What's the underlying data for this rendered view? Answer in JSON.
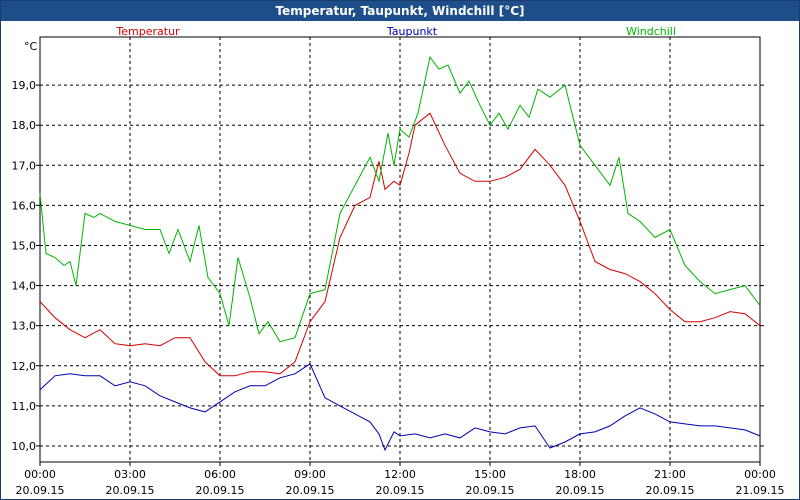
{
  "window": {
    "title": "Temperatur, Taupunkt, Windchill [°C]"
  },
  "chart_data": {
    "type": "line",
    "title": "Temperatur, Taupunkt, Windchill [°C]",
    "ylabel": "°C",
    "ylim": [
      9.6,
      20.2
    ],
    "yticks": [
      "10,0",
      "11,0",
      "12,0",
      "13,0",
      "14,0",
      "15,0",
      "16,0",
      "17,0",
      "18,0",
      "19,0"
    ],
    "xlim": [
      0,
      24
    ],
    "xticks": [
      {
        "time": "00:00",
        "date": "20.09.15"
      },
      {
        "time": "03:00",
        "date": "20.09.15"
      },
      {
        "time": "06:00",
        "date": "20.09.15"
      },
      {
        "time": "09:00",
        "date": "20.09.15"
      },
      {
        "time": "12:00",
        "date": "20.09.15"
      },
      {
        "time": "15:00",
        "date": "20.09.15"
      },
      {
        "time": "18:00",
        "date": "20.09.15"
      },
      {
        "time": "21:00",
        "date": "20.09.15"
      },
      {
        "time": "00:00",
        "date": "21.09.15"
      }
    ],
    "grid": true,
    "legend": "top",
    "series": [
      {
        "name": "Temperatur",
        "color": "#d40000",
        "x": [
          0,
          0.5,
          1,
          1.5,
          2,
          2.5,
          3,
          3.5,
          4,
          4.5,
          5,
          5.5,
          6,
          6.5,
          7,
          7.5,
          8,
          8.5,
          9,
          9.5,
          10,
          10.5,
          11,
          11.3,
          11.5,
          11.8,
          12,
          12.3,
          12.5,
          13,
          13.5,
          14,
          14.5,
          15,
          15.5,
          16,
          16.5,
          17,
          17.5,
          18,
          18.5,
          19,
          19.5,
          20,
          20.5,
          21,
          21.5,
          22,
          22.5,
          23,
          23.5,
          24
        ],
        "y": [
          13.6,
          13.2,
          12.9,
          12.7,
          12.9,
          12.55,
          12.5,
          12.55,
          12.5,
          12.7,
          12.7,
          12.1,
          11.75,
          11.75,
          11.85,
          11.85,
          11.8,
          12.1,
          13.1,
          13.6,
          15.2,
          16.0,
          16.2,
          17.1,
          16.4,
          16.6,
          16.5,
          17.3,
          18.0,
          18.3,
          17.5,
          16.8,
          16.6,
          16.6,
          16.7,
          16.9,
          17.4,
          17.0,
          16.5,
          15.6,
          14.6,
          14.4,
          14.3,
          14.1,
          13.8,
          13.4,
          13.1,
          13.1,
          13.2,
          13.35,
          13.3,
          13.0
        ]
      },
      {
        "name": "Taupunkt",
        "color": "#0000b4",
        "x": [
          0,
          0.5,
          1,
          1.5,
          2,
          2.5,
          3,
          3.5,
          4,
          4.5,
          5,
          5.5,
          6,
          6.5,
          7,
          7.5,
          8,
          8.5,
          9,
          9.5,
          10,
          10.5,
          11,
          11.3,
          11.5,
          11.8,
          12,
          12.5,
          13,
          13.5,
          14,
          14.5,
          15,
          15.5,
          16,
          16.5,
          17,
          17.5,
          18,
          18.5,
          19,
          19.5,
          20,
          20.5,
          21,
          21.5,
          22,
          22.5,
          23,
          23.5,
          24
        ],
        "y": [
          11.4,
          11.75,
          11.8,
          11.75,
          11.75,
          11.5,
          11.6,
          11.5,
          11.25,
          11.1,
          10.95,
          10.85,
          11.1,
          11.35,
          11.5,
          11.5,
          11.7,
          11.8,
          12.05,
          11.2,
          11.0,
          10.8,
          10.6,
          10.3,
          9.9,
          10.35,
          10.25,
          10.3,
          10.2,
          10.3,
          10.2,
          10.45,
          10.35,
          10.3,
          10.45,
          10.5,
          9.95,
          10.1,
          10.3,
          10.35,
          10.5,
          10.75,
          10.95,
          10.8,
          10.6,
          10.55,
          10.5,
          10.5,
          10.45,
          10.4,
          10.25
        ]
      },
      {
        "name": "Windchill",
        "color": "#00b400",
        "x": [
          0,
          0.2,
          0.5,
          0.8,
          1,
          1.2,
          1.5,
          1.8,
          2,
          2.5,
          3,
          3.5,
          4,
          4.3,
          4.6,
          5,
          5.3,
          5.6,
          6,
          6.3,
          6.6,
          7,
          7.3,
          7.6,
          8,
          8.5,
          9,
          9.5,
          10,
          10.5,
          11,
          11.3,
          11.6,
          11.8,
          12,
          12.3,
          12.6,
          13,
          13.3,
          13.6,
          14,
          14.3,
          14.6,
          15,
          15.3,
          15.6,
          16,
          16.3,
          16.6,
          17,
          17.5,
          18,
          18.5,
          19,
          19.3,
          19.6,
          20,
          20.5,
          21,
          21.5,
          22,
          22.5,
          23,
          23.5,
          24
        ],
        "y": [
          16.3,
          14.8,
          14.7,
          14.5,
          14.6,
          14.0,
          15.8,
          15.7,
          15.8,
          15.6,
          15.5,
          15.4,
          15.4,
          14.8,
          15.4,
          14.6,
          15.5,
          14.2,
          13.8,
          13.0,
          14.7,
          13.7,
          12.8,
          13.1,
          12.6,
          12.7,
          13.8,
          13.9,
          15.8,
          16.5,
          17.2,
          16.6,
          17.8,
          17.0,
          17.9,
          17.7,
          18.3,
          19.7,
          19.4,
          19.5,
          18.8,
          19.1,
          18.6,
          18.0,
          18.3,
          17.9,
          18.5,
          18.2,
          18.9,
          18.7,
          19.0,
          17.5,
          17.0,
          16.5,
          17.2,
          15.8,
          15.6,
          15.2,
          15.4,
          14.5,
          14.1,
          13.8,
          13.9,
          14.0,
          13.5
        ]
      }
    ]
  }
}
